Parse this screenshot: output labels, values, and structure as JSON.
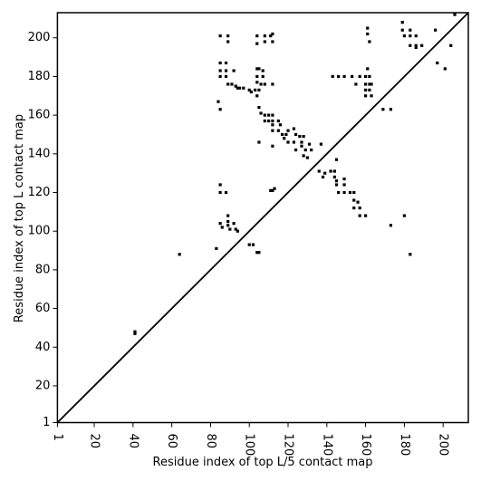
{
  "chart_data": {
    "type": "scatter",
    "xlabel": "Residue index of top L/5 contact map",
    "ylabel": "Residue index of top L contact map",
    "xlim": [
      1,
      213
    ],
    "ylim": [
      1,
      213
    ],
    "xticks": [
      1,
      20,
      40,
      60,
      80,
      100,
      120,
      140,
      160,
      180,
      200
    ],
    "yticks": [
      1,
      20,
      40,
      60,
      80,
      100,
      120,
      140,
      160,
      180,
      200
    ],
    "color": "#000000",
    "diagonal": true,
    "x": [
      41,
      41,
      64,
      83,
      85,
      85,
      88,
      85,
      89,
      89,
      85,
      85,
      88,
      88,
      85,
      88,
      92,
      84,
      85,
      89,
      91,
      93,
      94,
      95,
      97,
      100,
      101,
      103,
      105,
      104,
      105,
      104,
      107,
      107,
      104,
      106,
      108,
      112,
      104,
      105,
      106,
      108,
      110,
      112,
      112,
      110,
      108,
      112,
      115,
      116,
      112,
      115,
      117,
      119,
      120,
      118,
      120,
      123,
      123,
      124,
      126,
      127,
      128,
      124,
      127,
      129,
      128,
      130,
      132,
      131,
      112,
      105,
      104,
      104,
      108,
      108,
      111,
      112,
      112,
      111,
      112,
      113,
      100,
      102,
      104,
      105,
      85,
      86,
      89,
      89,
      89,
      92,
      93,
      94,
      90,
      137,
      136,
      139,
      138,
      142,
      144,
      144,
      145,
      145,
      145,
      146,
      149,
      149,
      149,
      152,
      154,
      154,
      154,
      156,
      157,
      157,
      160,
      173,
      180,
      183,
      143,
      146,
      149,
      153,
      157,
      160,
      161,
      162,
      160,
      162,
      163,
      160,
      162,
      160,
      163,
      155,
      169,
      173,
      161,
      161,
      162,
      179,
      179,
      180,
      183,
      183,
      183,
      186,
      186,
      186,
      189,
      196,
      197,
      201,
      204,
      206
    ],
    "values": [
      48,
      47,
      88,
      91,
      124,
      120,
      120,
      201,
      201,
      198,
      187,
      183,
      183,
      187,
      180,
      180,
      183,
      167,
      163,
      176,
      176,
      175,
      174,
      174,
      174,
      173,
      172,
      173,
      173,
      184,
      184,
      180,
      180,
      183,
      177,
      176,
      176,
      176,
      170,
      164,
      161,
      160,
      160,
      160,
      157,
      157,
      157,
      155,
      157,
      155,
      152,
      152,
      150,
      150,
      152,
      148,
      146,
      146,
      153,
      150,
      149,
      146,
      149,
      142,
      144,
      142,
      139,
      138,
      142,
      145,
      144,
      146,
      201,
      197,
      201,
      198,
      201,
      198,
      202,
      121,
      121,
      122,
      93,
      93,
      89,
      89,
      104,
      102,
      108,
      105,
      103,
      104,
      101,
      100,
      101,
      145,
      131,
      130,
      128,
      131,
      131,
      128,
      137,
      126,
      124,
      120,
      127,
      124,
      120,
      120,
      120,
      116,
      112,
      115,
      112,
      108,
      108,
      103,
      108,
      88,
      180,
      180,
      180,
      180,
      180,
      180,
      184,
      180,
      176,
      176,
      176,
      173,
      173,
      170,
      170,
      176,
      163,
      163,
      205,
      202,
      198,
      208,
      204,
      201,
      204,
      201,
      196,
      201,
      196,
      195,
      196,
      204,
      187,
      184,
      196,
      212
    ]
  }
}
